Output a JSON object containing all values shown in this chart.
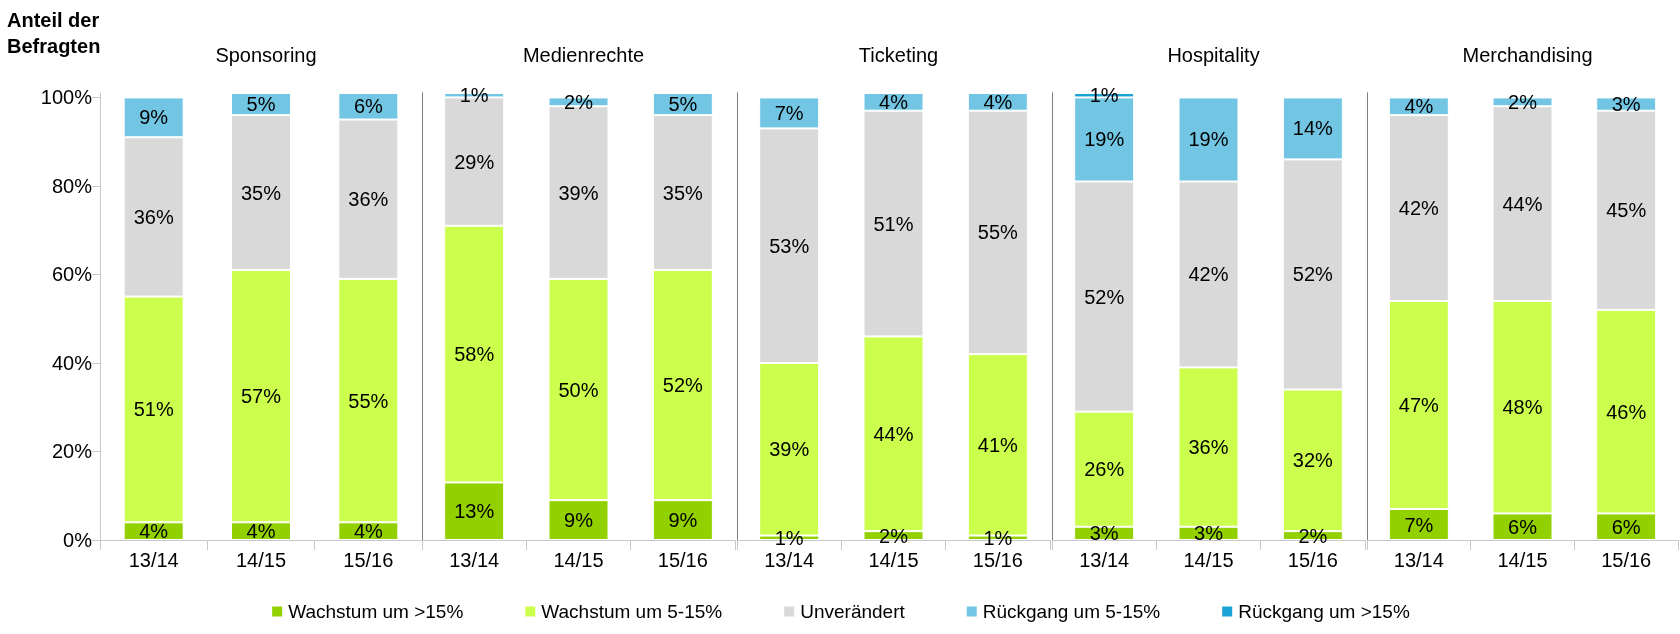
{
  "chart_data": [
    {
      "type": "bar",
      "title": "Sponsoring",
      "ylabel": "Anteil der Befragten",
      "categories": [
        "13/14",
        "14/15",
        "15/16"
      ],
      "stacked": true,
      "legend": "bottom",
      "ylim": [
        0,
        101
      ],
      "yticks": [
        {
          "value": 0,
          "label": "0%"
        },
        {
          "value": 20,
          "label": "20%"
        },
        {
          "value": 40,
          "label": "40%"
        },
        {
          "value": 60,
          "label": "60%"
        },
        {
          "value": 80,
          "label": "80%"
        },
        {
          "value": 100,
          "label": "100%"
        }
      ],
      "series": [
        {
          "name": "Wachstum um >15%",
          "color": "#92d000",
          "values": [
            4,
            4,
            4
          ],
          "value_labels": [
            "4%",
            "4%",
            "4%"
          ]
        },
        {
          "name": "Wachstum um 5-15%",
          "color": "#ccff4d",
          "values": [
            51,
            57,
            55
          ],
          "value_labels": [
            "51%",
            "57%",
            "55%"
          ]
        },
        {
          "name": "Unverändert",
          "color": "#d9d9d9",
          "values": [
            36,
            35,
            36
          ],
          "value_labels": [
            "36%",
            "35%",
            "36%"
          ]
        },
        {
          "name": "Rückgang um 5-15%",
          "color": "#72c6e4",
          "values": [
            9,
            5,
            6
          ],
          "value_labels": [
            "9%",
            "5%",
            "6%"
          ]
        },
        {
          "name": "Rückgang um >15%",
          "color": "#1aa3d6",
          "values": [
            null,
            null,
            null
          ],
          "value_labels": [
            null,
            null,
            null
          ]
        }
      ]
    },
    {
      "type": "bar",
      "title": "Medienrechte",
      "categories": [
        "13/14",
        "14/15",
        "15/16"
      ],
      "stacked": true,
      "tick_labels": "x",
      "ylim": [
        0,
        101
      ],
      "yticks": [
        {
          "value": 0,
          "label": null
        },
        {
          "value": 20,
          "label": null
        },
        {
          "value": 40,
          "label": null
        },
        {
          "value": 60,
          "label": null
        },
        {
          "value": 80,
          "label": null
        },
        {
          "value": 100,
          "label": null
        }
      ],
      "series": [
        {
          "color": "#92d000",
          "values": [
            13,
            9,
            9
          ],
          "value_labels": [
            "13%",
            "9%",
            "9%"
          ]
        },
        {
          "color": "#ccff4d",
          "values": [
            58,
            50,
            52
          ],
          "value_labels": [
            "58%",
            "50%",
            "52%"
          ]
        },
        {
          "color": "#d9d9d9",
          "values": [
            29,
            39,
            35
          ],
          "value_labels": [
            "29%",
            "39%",
            "35%"
          ]
        },
        {
          "color": "#72c6e4",
          "values": [
            1,
            2,
            5
          ],
          "value_labels": [
            "1%",
            "2%",
            "5%"
          ]
        },
        {
          "color": "#1aa3d6",
          "values": [
            null,
            null,
            null
          ],
          "value_labels": [
            null,
            null,
            null
          ]
        }
      ]
    },
    {
      "type": "bar",
      "title": "Ticketing",
      "categories": [
        "13/14",
        "14/15",
        "15/16"
      ],
      "stacked": true,
      "tick_labels": "x",
      "ylim": [
        0,
        101
      ],
      "yticks": [
        {
          "value": 0,
          "label": null
        },
        {
          "value": 20,
          "label": null
        },
        {
          "value": 40,
          "label": null
        },
        {
          "value": 60,
          "label": null
        },
        {
          "value": 80,
          "label": null
        },
        {
          "value": 100,
          "label": null
        }
      ],
      "series": [
        {
          "color": "#92d000",
          "values": [
            1,
            2,
            1
          ],
          "value_labels": [
            "1%",
            "2%",
            "1%"
          ]
        },
        {
          "color": "#ccff4d",
          "values": [
            39,
            44,
            41
          ],
          "value_labels": [
            "39%",
            "44%",
            "41%"
          ]
        },
        {
          "color": "#d9d9d9",
          "values": [
            53,
            51,
            55
          ],
          "value_labels": [
            "53%",
            "51%",
            "55%"
          ]
        },
        {
          "color": "#72c6e4",
          "values": [
            7,
            4,
            4
          ],
          "value_labels": [
            "7%",
            "4%",
            "4%"
          ]
        },
        {
          "color": "#1aa3d6",
          "values": [
            null,
            null,
            null
          ],
          "value_labels": [
            null,
            null,
            null
          ]
        }
      ]
    },
    {
      "type": "bar",
      "title": "Hospitality",
      "categories": [
        "13/14",
        "14/15",
        "15/16"
      ],
      "stacked": true,
      "tick_labels": "x",
      "ylim": [
        0,
        101
      ],
      "yticks": [
        {
          "value": 0,
          "label": null
        },
        {
          "value": 20,
          "label": null
        },
        {
          "value": 40,
          "label": null
        },
        {
          "value": 60,
          "label": null
        },
        {
          "value": 80,
          "label": null
        },
        {
          "value": 100,
          "label": null
        }
      ],
      "series": [
        {
          "color": "#92d000",
          "values": [
            3,
            3,
            2
          ],
          "value_labels": [
            "3%",
            "3%",
            "2%"
          ]
        },
        {
          "color": "#ccff4d",
          "values": [
            26,
            36,
            32
          ],
          "value_labels": [
            "26%",
            "36%",
            "32%"
          ]
        },
        {
          "color": "#d9d9d9",
          "values": [
            52,
            42,
            52
          ],
          "value_labels": [
            "52%",
            "42%",
            "52%"
          ]
        },
        {
          "color": "#72c6e4",
          "values": [
            19,
            19,
            14
          ],
          "value_labels": [
            "19%",
            "19%",
            "14%"
          ]
        },
        {
          "color": "#1aa3d6",
          "values": [
            1,
            null,
            null
          ],
          "value_labels": [
            "1%",
            null,
            null
          ]
        }
      ]
    },
    {
      "type": "bar",
      "title": "Merchandising",
      "categories": [
        "13/14",
        "14/15",
        "15/16"
      ],
      "stacked": true,
      "tick_labels": "x",
      "ylim": [
        0,
        101
      ],
      "yticks": [
        {
          "value": 0,
          "label": null
        },
        {
          "value": 20,
          "label": null
        },
        {
          "value": 40,
          "label": null
        },
        {
          "value": 60,
          "label": null
        },
        {
          "value": 80,
          "label": null
        },
        {
          "value": 100,
          "label": null
        }
      ],
      "series": [
        {
          "color": "#92d000",
          "values": [
            7,
            6,
            6
          ],
          "value_labels": [
            "7%",
            "6%",
            "6%"
          ]
        },
        {
          "color": "#ccff4d",
          "values": [
            47,
            48,
            46
          ],
          "value_labels": [
            "47%",
            "48%",
            "46%"
          ]
        },
        {
          "color": "#d9d9d9",
          "values": [
            42,
            44,
            45
          ],
          "value_labels": [
            "42%",
            "44%",
            "45%"
          ]
        },
        {
          "color": "#72c6e4",
          "values": [
            4,
            2,
            3
          ],
          "value_labels": [
            "4%",
            "2%",
            "3%"
          ]
        },
        {
          "color": "#1aa3d6",
          "values": [
            null,
            null,
            null
          ],
          "value_labels": [
            null,
            null,
            null
          ]
        }
      ]
    }
  ]
}
